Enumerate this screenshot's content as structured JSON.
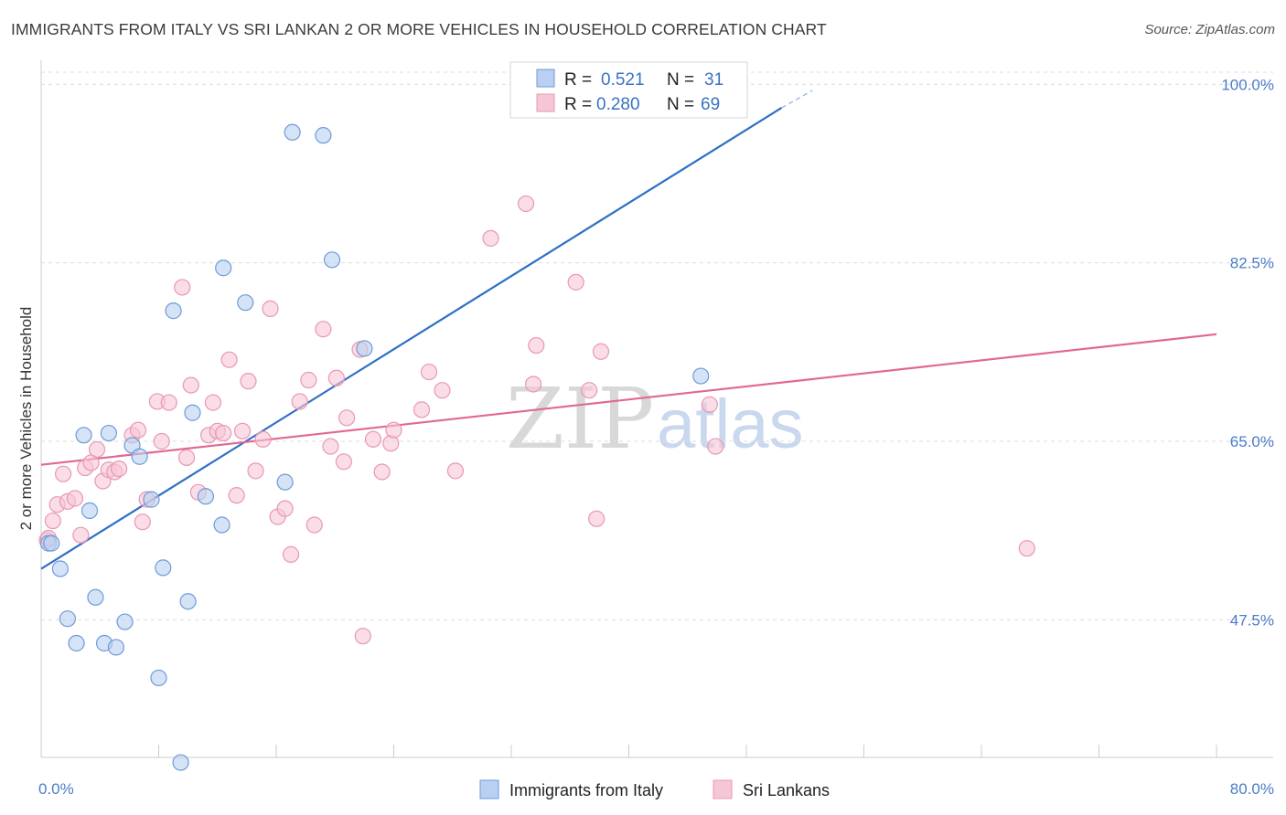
{
  "title": "IMMIGRANTS FROM ITALY VS SRI LANKAN 2 OR MORE VEHICLES IN HOUSEHOLD CORRELATION CHART",
  "source": "Source: ZipAtlas.com",
  "watermark": {
    "zip": "ZIP",
    "atlas": "atlas"
  },
  "colors": {
    "italy_fill": "#b9d0f2",
    "italy_stroke": "#6f9ad8",
    "italy_line": "#2f6fc6",
    "srilanka_fill": "#f7c6d5",
    "srilanka_stroke": "#e898b2",
    "srilanka_line": "#e06892",
    "tick_label": "#4a7cc9",
    "grid": "#dddddd"
  },
  "legend": {
    "rows": [
      {
        "r_label": "R =",
        "r_value": "0.521",
        "n_label": "N =",
        "n_value": "31"
      },
      {
        "r_label": "R =",
        "r_value": "0.280",
        "n_label": "N =",
        "n_value": "69"
      }
    ]
  },
  "chart_data": {
    "type": "scatter",
    "title": "IMMIGRANTS FROM ITALY VS SRI LANKAN 2 OR MORE VEHICLES IN HOUSEHOLD CORRELATION CHART",
    "xlabel": "",
    "ylabel": "2 or more Vehicles in Household",
    "xlim": [
      0,
      80
    ],
    "ylim": [
      34,
      102
    ],
    "x_tick_labels": [
      "0.0%",
      "80.0%"
    ],
    "y_ticks": [
      47.5,
      65.0,
      82.5,
      100.0
    ],
    "y_tick_labels": [
      "47.5%",
      "65.0%",
      "82.5%",
      "100.0%"
    ],
    "grid": true,
    "legend_position": "bottom-center",
    "series": [
      {
        "name": "Immigrants from Italy",
        "color": "#b9d0f2",
        "points": [
          [
            0.5,
            55.0
          ],
          [
            1.3,
            52.5
          ],
          [
            1.8,
            47.6
          ],
          [
            2.4,
            45.2
          ],
          [
            2.9,
            65.6
          ],
          [
            3.3,
            58.2
          ],
          [
            3.7,
            49.7
          ],
          [
            4.3,
            45.2
          ],
          [
            4.6,
            65.8
          ],
          [
            5.1,
            44.8
          ],
          [
            5.7,
            47.3
          ],
          [
            6.2,
            64.6
          ],
          [
            6.7,
            63.5
          ],
          [
            7.5,
            59.3
          ],
          [
            8.0,
            41.8
          ],
          [
            8.3,
            52.6
          ],
          [
            9.0,
            77.8
          ],
          [
            9.5,
            33.5
          ],
          [
            10.0,
            49.3
          ],
          [
            10.3,
            67.8
          ],
          [
            11.2,
            59.6
          ],
          [
            12.3,
            56.8
          ],
          [
            12.4,
            82.0
          ],
          [
            13.9,
            78.6
          ],
          [
            16.6,
            61.0
          ],
          [
            17.1,
            95.3
          ],
          [
            19.2,
            95.0
          ],
          [
            19.8,
            82.8
          ],
          [
            22.0,
            74.1
          ],
          [
            44.9,
            71.4
          ],
          [
            0.7,
            55.0
          ]
        ]
      },
      {
        "name": "Sri Lankans",
        "color": "#f7c6d5",
        "points": [
          [
            0.4,
            55.3
          ],
          [
            0.8,
            57.2
          ],
          [
            1.1,
            58.8
          ],
          [
            1.5,
            61.8
          ],
          [
            1.8,
            59.1
          ],
          [
            2.3,
            59.4
          ],
          [
            2.7,
            55.8
          ],
          [
            3.0,
            62.4
          ],
          [
            3.4,
            62.9
          ],
          [
            3.8,
            64.2
          ],
          [
            4.2,
            61.1
          ],
          [
            4.6,
            62.2
          ],
          [
            5.0,
            62.0
          ],
          [
            5.3,
            62.3
          ],
          [
            6.2,
            65.6
          ],
          [
            6.6,
            66.1
          ],
          [
            6.9,
            57.1
          ],
          [
            7.2,
            59.3
          ],
          [
            7.9,
            68.9
          ],
          [
            8.2,
            65.0
          ],
          [
            8.7,
            68.8
          ],
          [
            9.6,
            80.1
          ],
          [
            9.9,
            63.4
          ],
          [
            10.2,
            70.5
          ],
          [
            10.7,
            60.0
          ],
          [
            11.4,
            65.6
          ],
          [
            11.7,
            68.8
          ],
          [
            12.0,
            66.0
          ],
          [
            12.4,
            65.8
          ],
          [
            12.8,
            73.0
          ],
          [
            13.3,
            59.7
          ],
          [
            13.7,
            66.0
          ],
          [
            14.1,
            70.9
          ],
          [
            14.6,
            62.1
          ],
          [
            15.1,
            65.2
          ],
          [
            15.6,
            78.0
          ],
          [
            16.1,
            57.6
          ],
          [
            16.6,
            58.4
          ],
          [
            17.0,
            53.9
          ],
          [
            17.6,
            68.9
          ],
          [
            18.2,
            71.0
          ],
          [
            18.6,
            56.8
          ],
          [
            19.2,
            76.0
          ],
          [
            19.7,
            64.5
          ],
          [
            20.1,
            71.2
          ],
          [
            20.6,
            63.0
          ],
          [
            20.8,
            67.3
          ],
          [
            21.7,
            74.0
          ],
          [
            21.9,
            45.9
          ],
          [
            22.6,
            65.2
          ],
          [
            23.2,
            62.0
          ],
          [
            23.8,
            64.8
          ],
          [
            24.0,
            66.1
          ],
          [
            25.9,
            68.1
          ],
          [
            26.4,
            71.8
          ],
          [
            27.3,
            70.0
          ],
          [
            28.2,
            62.1
          ],
          [
            30.6,
            84.9
          ],
          [
            33.0,
            88.3
          ],
          [
            33.5,
            70.6
          ],
          [
            33.7,
            74.4
          ],
          [
            36.4,
            80.6
          ],
          [
            37.3,
            70.0
          ],
          [
            37.8,
            57.4
          ],
          [
            38.1,
            73.8
          ],
          [
            45.5,
            68.6
          ],
          [
            45.9,
            64.5
          ],
          [
            67.1,
            54.5
          ],
          [
            0.5,
            55.5
          ]
        ]
      }
    ],
    "trendlines": [
      {
        "series": "Immigrants from Italy",
        "x": [
          0.0,
          50.4
        ],
        "y": [
          52.5,
          97.7
        ],
        "dashed_extension_to": [
          52.5,
          99.4
        ]
      },
      {
        "series": "Sri Lankans",
        "x": [
          0.0,
          80.0
        ],
        "y": [
          62.7,
          75.5
        ]
      }
    ]
  }
}
